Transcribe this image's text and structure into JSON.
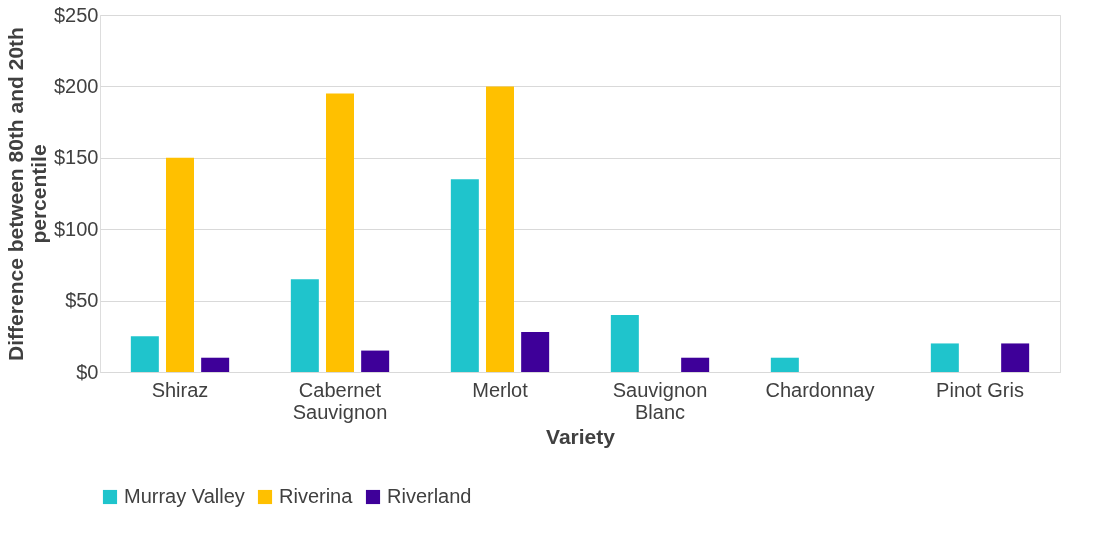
{
  "chart_data": {
    "type": "bar",
    "xlabel": "Variety",
    "ylabel": "Difference between 80th and 20th percentile",
    "categories": [
      "Shiraz",
      "Cabernet Sauvignon",
      "Merlot",
      "Sauvignon Blanc",
      "Chardonnay",
      "Pinot Gris"
    ],
    "series": [
      {
        "name": "Murray Valley",
        "color": "#1fc4cc",
        "values": [
          25,
          65,
          135,
          40,
          10,
          20
        ]
      },
      {
        "name": "Riverina",
        "color": "#ffc000",
        "values": [
          150,
          195,
          200,
          null,
          null,
          null
        ]
      },
      {
        "name": "Riverland",
        "color": "#3e0099",
        "values": [
          10,
          15,
          28,
          10,
          null,
          20
        ]
      }
    ],
    "ylim": [
      0,
      250
    ],
    "yticks": [
      {
        "value": 0,
        "label": "$0"
      },
      {
        "value": 50,
        "label": "$50"
      },
      {
        "value": 100,
        "label": "$100"
      },
      {
        "value": 150,
        "label": "$150"
      },
      {
        "value": 200,
        "label": "$200"
      },
      {
        "value": 250,
        "label": "$250"
      }
    ],
    "grid": "y",
    "legend": "bottom"
  }
}
